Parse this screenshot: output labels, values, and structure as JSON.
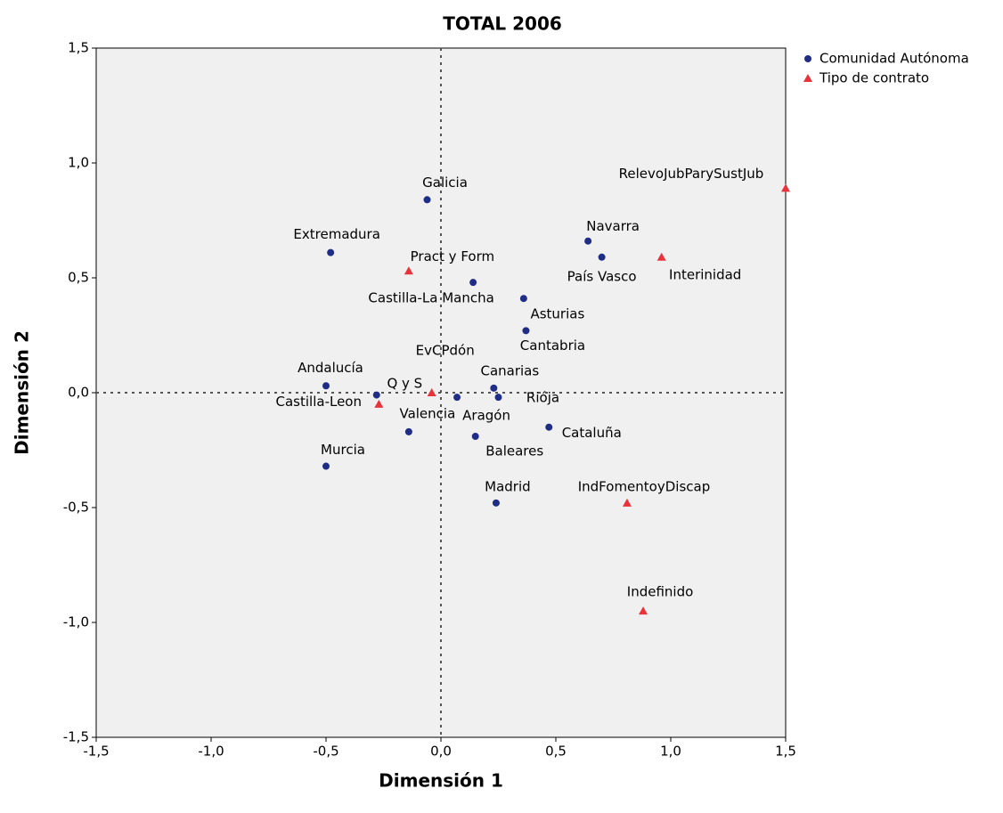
{
  "chart_data": {
    "type": "scatter",
    "title": "TOTAL 2006",
    "x_label": "Dimensión 1",
    "y_label": "Dimensión 2",
    "xlim": [
      -1.5,
      1.5
    ],
    "ylim": [
      -1.5,
      1.5
    ],
    "xticks": [
      {
        "value": -1.5,
        "label": "-1,5"
      },
      {
        "value": -1.0,
        "label": "-1,0"
      },
      {
        "value": -0.5,
        "label": "-0,5"
      },
      {
        "value": 0,
        "label": "0,0"
      },
      {
        "value": 0.5,
        "label": "0,5"
      },
      {
        "value": 1.0,
        "label": "1,0"
      },
      {
        "value": 1.5,
        "label": "1,5"
      }
    ],
    "yticks": [
      {
        "value": -1.5,
        "label": "-1,5"
      },
      {
        "value": -1.0,
        "label": "-1,0"
      },
      {
        "value": -0.5,
        "label": "-0,5"
      },
      {
        "value": 0,
        "label": "0,0"
      },
      {
        "value": 0.5,
        "label": "0,5"
      },
      {
        "value": 1.0,
        "label": "1,0"
      },
      {
        "value": 1.5,
        "label": "1,5"
      }
    ],
    "series": [
      {
        "name": "Comunidad Autónoma",
        "color": "#1f2d87",
        "marker": "circle",
        "labels": [
          "Galicia",
          "Extremadura",
          "Castilla-La Mancha",
          "Navarra",
          "País Vasco",
          "Asturias",
          "Cantabria",
          "Andalucía",
          "Castilla-Leon",
          "Valencia",
          "Aragón",
          "Canarias",
          "Riója",
          "Cataluña",
          "Baleares",
          "Murcia",
          "Madrid"
        ],
        "x": [
          -0.06,
          -0.48,
          0.14,
          0.64,
          0.7,
          0.36,
          0.37,
          -0.5,
          -0.28,
          -0.14,
          0.07,
          0.23,
          0.25,
          0.47,
          0.15,
          -0.5,
          0.24
        ],
        "values": [
          0.84,
          0.61,
          0.48,
          0.66,
          0.59,
          0.41,
          0.27,
          0.03,
          -0.01,
          -0.17,
          -0.02,
          0.02,
          -0.02,
          -0.15,
          -0.19,
          -0.32,
          -0.48
        ]
      },
      {
        "name": "Tipo de contrato",
        "color": "#e8333a",
        "marker": "triangle",
        "labels": [
          "Pract y Form",
          "RelevoJubParySustJub",
          "Interinidad",
          "EvCPdón",
          "Q y S",
          "IndFomentoyDiscap",
          "Indefinido"
        ],
        "x": [
          -0.14,
          1.5,
          0.96,
          -0.04,
          -0.27,
          0.81,
          0.88
        ],
        "values": [
          0.53,
          0.89,
          0.59,
          0.0,
          -0.05,
          -0.48,
          -0.95
        ]
      }
    ]
  }
}
